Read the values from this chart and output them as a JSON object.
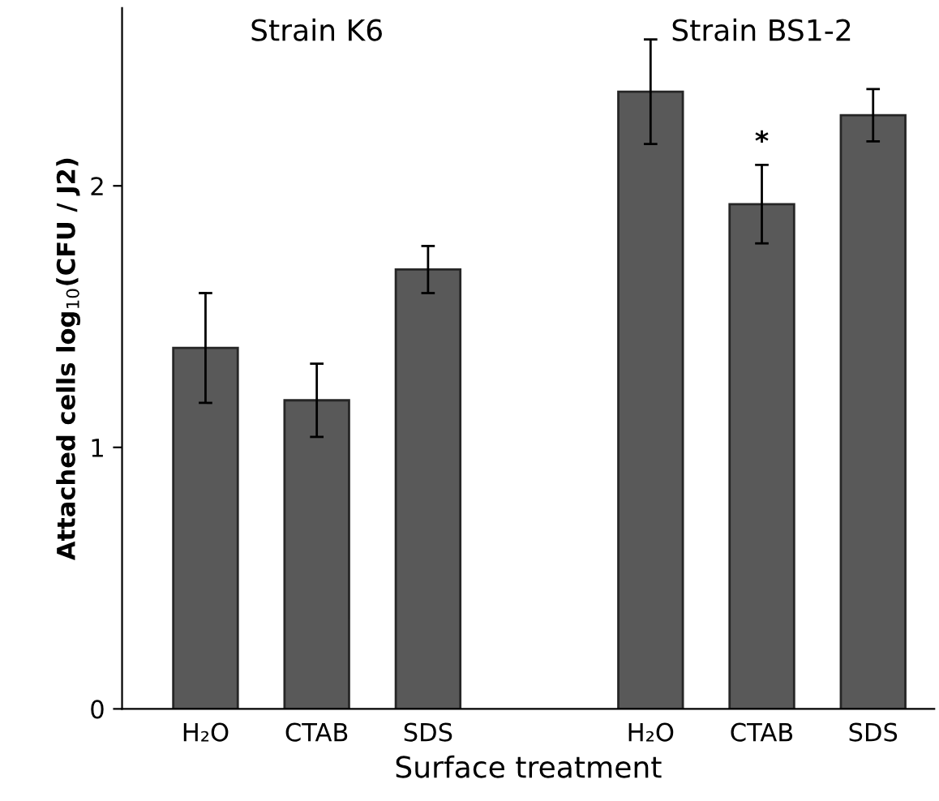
{
  "chart_data": {
    "type": "bar",
    "xlabel": "Surface treatment",
    "ylabel": "Attached cells log$_{10}$(CFU / J2)",
    "categories": [
      "H₂O",
      "CTAB",
      "SDS",
      null,
      "H₂O",
      "CTAB",
      "SDS"
    ],
    "values": [
      1.38,
      1.18,
      1.68,
      null,
      2.36,
      1.93,
      2.27
    ],
    "errors": [
      0.21,
      0.14,
      0.09,
      null,
      0.2,
      0.15,
      0.1
    ],
    "color": "#595959",
    "ylim": [
      0,
      2.68
    ],
    "yticks": [
      0,
      1,
      2
    ],
    "grid": false,
    "legend": false,
    "annotations": [
      "Strain K6",
      "Strain BS1-2",
      "*"
    ]
  }
}
